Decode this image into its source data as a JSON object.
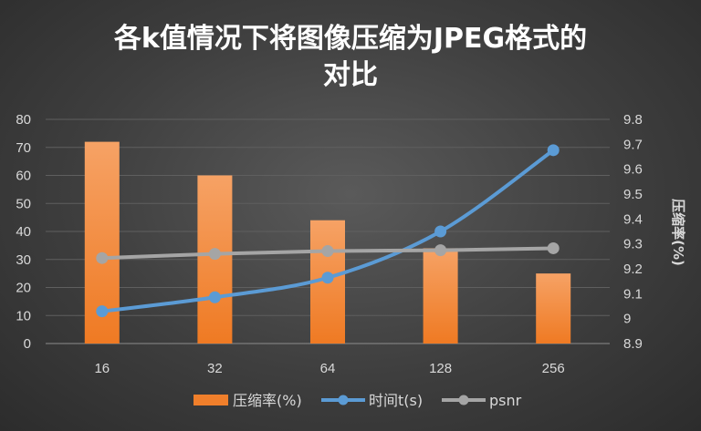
{
  "chart_data": {
    "type": "bar",
    "title_lines": [
      "各k值情况下将图像压缩为JPEG格式的",
      "对比"
    ],
    "categories": [
      "16",
      "32",
      "64",
      "128",
      "256"
    ],
    "y_left": {
      "ylim": [
        0,
        80
      ],
      "ticks": [
        "0",
        "10",
        "20",
        "30",
        "40",
        "50",
        "60",
        "70",
        "80"
      ]
    },
    "y_right": {
      "label": "压缩率(%)",
      "ylim": [
        8.9,
        9.8
      ],
      "ticks": [
        "8.9",
        "9",
        "9.1",
        "9.2",
        "9.3",
        "9.4",
        "9.5",
        "9.6",
        "9.7",
        "9.8"
      ]
    },
    "series": [
      {
        "name": "压缩率(%)",
        "kind": "bar",
        "axis": "left",
        "color": "#f07f2b",
        "values": [
          72,
          60,
          44,
          34,
          25
        ]
      },
      {
        "name": "时间t(s)",
        "kind": "line",
        "axis": "left",
        "color": "#5b9bd5",
        "values": [
          11.5,
          16.5,
          23.5,
          40,
          69
        ]
      },
      {
        "name": "psnr",
        "kind": "line",
        "axis": "left",
        "color": "#a5a5a5",
        "values": [
          30.5,
          32,
          33,
          33.3,
          34
        ]
      }
    ],
    "legend_position": "bottom",
    "grid": true
  }
}
